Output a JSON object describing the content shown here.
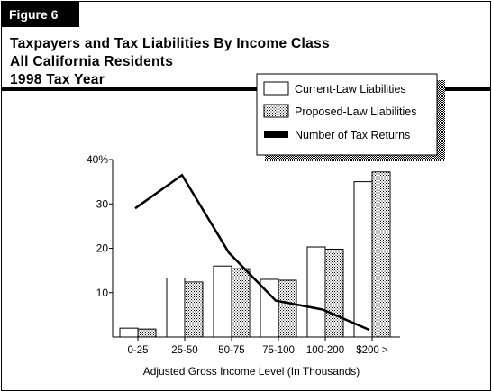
{
  "figure_label": "Figure 6",
  "title_lines": [
    "Taxpayers and Tax Liabilities By Income Class",
    "All California Residents",
    "1998 Tax Year"
  ],
  "chart_data": {
    "type": "bar",
    "title": "Taxpayers and Tax Liabilities By Income Class",
    "xlabel": "Adjusted Gross Income Level (In Thousands)",
    "ylabel": "",
    "categories": [
      "0-25",
      "25-50",
      "50-75",
      "75-100",
      "100-200",
      "$200 >"
    ],
    "ylim": [
      0,
      40
    ],
    "yticks": [
      {
        "value": 10,
        "label": "10"
      },
      {
        "value": 20,
        "label": "20"
      },
      {
        "value": 30,
        "label": "30"
      },
      {
        "value": 40,
        "label": "40%"
      }
    ],
    "series": [
      {
        "name": "Current-Law Liabilities",
        "kind": "bar",
        "fill": "white",
        "values": [
          2,
          13.3,
          16,
          13,
          20.3,
          35
        ]
      },
      {
        "name": "Proposed-Law Liabilities",
        "kind": "bar",
        "fill": "stipple",
        "values": [
          1.8,
          12.4,
          15.4,
          12.8,
          19.8,
          37.2
        ]
      },
      {
        "name": "Number of Tax Returns",
        "kind": "line",
        "values": [
          29,
          36.5,
          19,
          8.2,
          6.2,
          1.6
        ]
      }
    ],
    "grid": false,
    "legend_position": "top-right"
  }
}
